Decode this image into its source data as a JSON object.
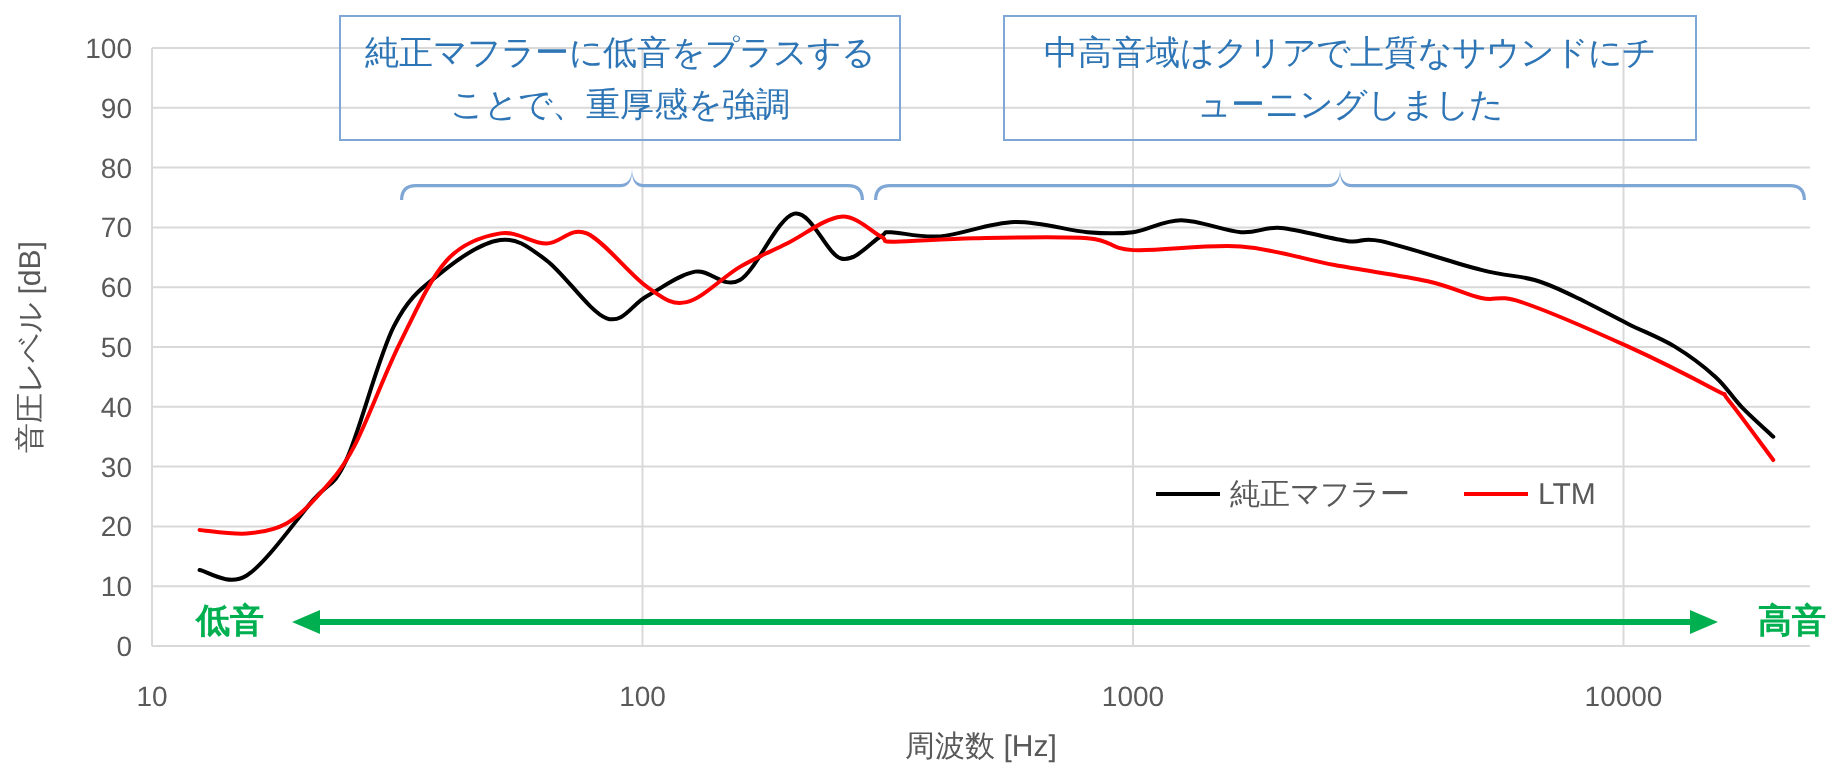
{
  "chart_data": {
    "type": "line",
    "xlabel": "周波数 [Hz]",
    "ylabel": "音圧レベル [dB]",
    "log": "x",
    "xlim": [
      10,
      24000
    ],
    "xticks": [
      10,
      100,
      1000,
      10000
    ],
    "ylim": [
      0,
      100
    ],
    "yticks": [
      0,
      10,
      20,
      30,
      40,
      50,
      60,
      70,
      80,
      90,
      100
    ],
    "grid": true,
    "legend": "bottom right",
    "marker": "none",
    "line_style": "solid",
    "series": [
      {
        "name": "純正マフラー",
        "color": "#000000",
        "x": [
          12.5,
          15.6,
          21.3,
          24.9,
          31.1,
          38.7,
          51.3,
          63.7,
          84.5,
          102,
          128,
          158,
          204,
          254,
          306,
          321,
          405,
          573,
          808,
          1000,
          1253,
          1660,
          2004,
          2740,
          3206,
          5128,
          6590,
          7960,
          10200,
          12700,
          15400,
          17400,
          20200
        ],
        "values": [
          12.7,
          11.8,
          24.4,
          31.1,
          53.4,
          62.3,
          67.9,
          64.5,
          54.8,
          58.5,
          62.6,
          61.2,
          72.3,
          64.8,
          68.5,
          69.2,
          68.5,
          70.9,
          69.2,
          69.2,
          71.2,
          69.2,
          69.9,
          67.7,
          67.7,
          62.9,
          61.2,
          58.4,
          53.9,
          50.1,
          45.0,
          40.0,
          35.0
        ]
      },
      {
        "name": "LTM",
        "color": "#ff0000",
        "x": [
          12.5,
          15.6,
          18.8,
          22,
          25.8,
          32,
          39.9,
          51.3,
          63.7,
          77,
          102,
          123,
          158,
          197,
          254,
          306,
          325,
          474,
          808,
          1000,
          1660,
          2576,
          3990,
          5128,
          6195,
          10200,
          15400,
          16370,
          20200
        ],
        "values": [
          19.4,
          18.8,
          20.5,
          25.5,
          33.3,
          50.6,
          64.5,
          69.0,
          67.3,
          69.0,
          60.1,
          57.5,
          63.4,
          67.3,
          71.8,
          68.5,
          67.6,
          68.2,
          68.2,
          66.2,
          66.8,
          63.7,
          61.0,
          58.2,
          57.5,
          50.1,
          42.8,
          41.1,
          31.1
        ]
      }
    ],
    "annotations": [
      "純正マフラーに低音をプラスすることで、重厚感を強調",
      "中高音域はクリアで上質なサウンドにチューニングしました",
      "低音",
      "高音"
    ]
  }
}
